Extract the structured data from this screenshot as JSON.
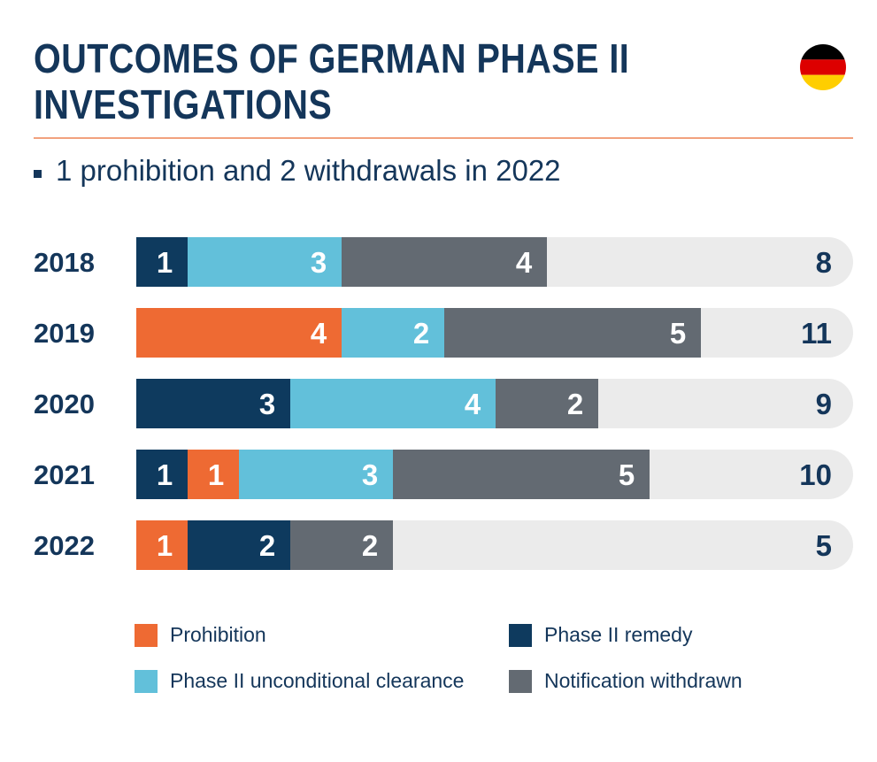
{
  "title_line1": "OUTCOMES OF GERMAN PHASE II",
  "title_line2": "INVESTIGATIONS",
  "subtitle": "1 prohibition and 2 withdrawals in 2022",
  "flag": {
    "name": "germany-flag-icon",
    "colors": [
      "#000000",
      "#dd0000",
      "#ffce00"
    ]
  },
  "colors": {
    "Prohibition": "#ee6a33",
    "Phase II remedy": "#0e3a5e",
    "Phase II unconditional clearance": "#62c0da",
    "Notification withdrawn": "#636a72",
    "track": "#ebebeb",
    "text_dark": "#14365a"
  },
  "chart_data": {
    "type": "bar",
    "orientation": "horizontal-stacked",
    "categories": [
      "2018",
      "2019",
      "2020",
      "2021",
      "2022"
    ],
    "totals": [
      8,
      11,
      9,
      10,
      5
    ],
    "stacks": [
      [
        {
          "series": "Phase II remedy",
          "value": 1
        },
        {
          "series": "Phase II unconditional clearance",
          "value": 3
        },
        {
          "series": "Notification withdrawn",
          "value": 4
        }
      ],
      [
        {
          "series": "Prohibition",
          "value": 4
        },
        {
          "series": "Phase II unconditional clearance",
          "value": 2
        },
        {
          "series": "Notification withdrawn",
          "value": 5
        }
      ],
      [
        {
          "series": "Phase II remedy",
          "value": 3
        },
        {
          "series": "Phase II unconditional clearance",
          "value": 4
        },
        {
          "series": "Notification withdrawn",
          "value": 2
        }
      ],
      [
        {
          "series": "Phase II remedy",
          "value": 1
        },
        {
          "series": "Prohibition",
          "value": 1
        },
        {
          "series": "Phase II unconditional clearance",
          "value": 3
        },
        {
          "series": "Notification withdrawn",
          "value": 5
        }
      ],
      [
        {
          "series": "Prohibition",
          "value": 1
        },
        {
          "series": "Phase II remedy",
          "value": 2
        },
        {
          "series": "Notification withdrawn",
          "value": 2
        }
      ]
    ],
    "legend": [
      "Prohibition",
      "Phase II remedy",
      "Phase II unconditional clearance",
      "Notification withdrawn"
    ],
    "legend_position": "bottom"
  }
}
